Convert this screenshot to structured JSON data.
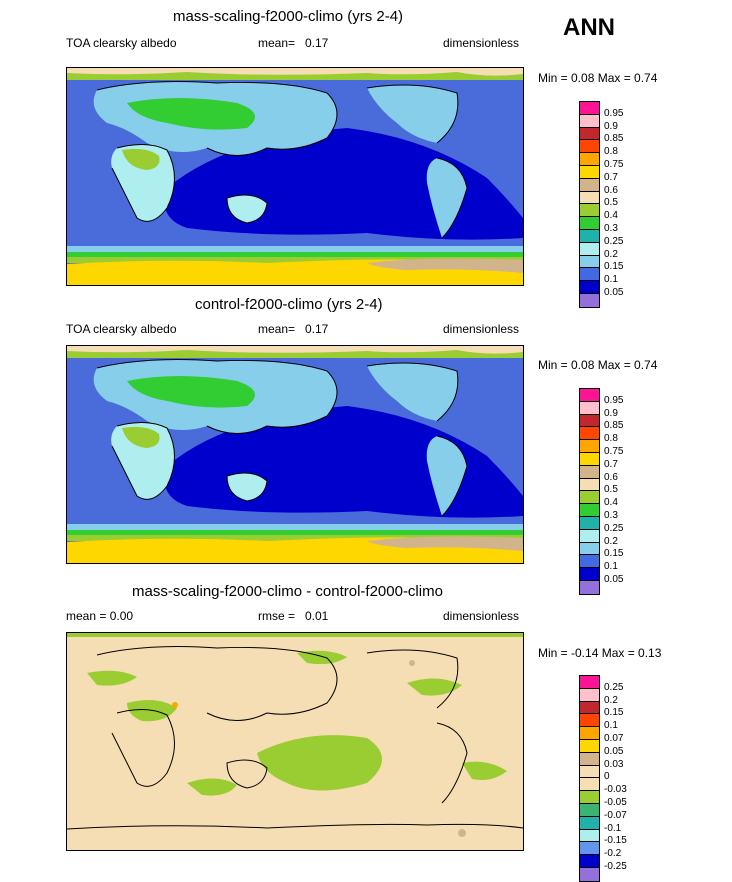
{
  "season": "ANN",
  "panels": [
    {
      "title": "mass-scaling-f2000-climo (yrs 2-4)",
      "left_label": "TOA clearsky albedo",
      "mean_label": "mean=",
      "mean_value": "0.17",
      "units": "dimensionless",
      "minmax": "Min =  0.08 Max =  0.74",
      "colorbar": {
        "labels": [
          "0.95",
          "0.9",
          "0.85",
          "0.8",
          "0.75",
          "0.7",
          "0.6",
          "0.5",
          "0.4",
          "0.3",
          "0.25",
          "0.2",
          "0.15",
          "0.1",
          "0.05"
        ],
        "colors": [
          "#ff1493",
          "#ffc0cb",
          "#c0282d",
          "#ff4500",
          "#ffa500",
          "#ffd700",
          "#d2b48c",
          "#f5deb3",
          "#9acd32",
          "#32cd32",
          "#20b2aa",
          "#afeeee",
          "#87ceeb",
          "#4169e1",
          "#0000cd",
          "#9370db"
        ]
      }
    },
    {
      "title": "control-f2000-climo (yrs 2-4)",
      "left_label": "TOA clearsky albedo",
      "mean_label": "mean=",
      "mean_value": "0.17",
      "units": "dimensionless",
      "minmax": "Min =  0.08 Max =  0.74",
      "colorbar": {
        "labels": [
          "0.95",
          "0.9",
          "0.85",
          "0.8",
          "0.75",
          "0.7",
          "0.6",
          "0.5",
          "0.4",
          "0.3",
          "0.25",
          "0.2",
          "0.15",
          "0.1",
          "0.05"
        ],
        "colors": [
          "#ff1493",
          "#ffc0cb",
          "#c0282d",
          "#ff4500",
          "#ffa500",
          "#ffd700",
          "#d2b48c",
          "#f5deb3",
          "#9acd32",
          "#32cd32",
          "#20b2aa",
          "#afeeee",
          "#87ceeb",
          "#4169e1",
          "#0000cd",
          "#9370db"
        ]
      }
    },
    {
      "title": "mass-scaling-f2000-climo - control-f2000-climo",
      "left_label": "mean =   0.00",
      "mean_label": "rmse =",
      "mean_value": "0.01",
      "units": "dimensionless",
      "minmax": "Min =  -0.14 Max =   0.13",
      "colorbar": {
        "labels": [
          "0.25",
          "0.2",
          "0.15",
          "0.1",
          "0.07",
          "0.05",
          "0.03",
          "0",
          "-0.03",
          "-0.05",
          "-0.07",
          "-0.1",
          "-0.15",
          "-0.2",
          "-0.25"
        ],
        "colors": [
          "#ff1493",
          "#ffc0cb",
          "#c0282d",
          "#ff4500",
          "#ffa500",
          "#ffd700",
          "#d2b48c",
          "#f5deb3",
          "#f5deb3",
          "#9acd32",
          "#3cb371",
          "#20b2aa",
          "#afeeee",
          "#6495ed",
          "#0000cd",
          "#9370db"
        ]
      }
    }
  ]
}
